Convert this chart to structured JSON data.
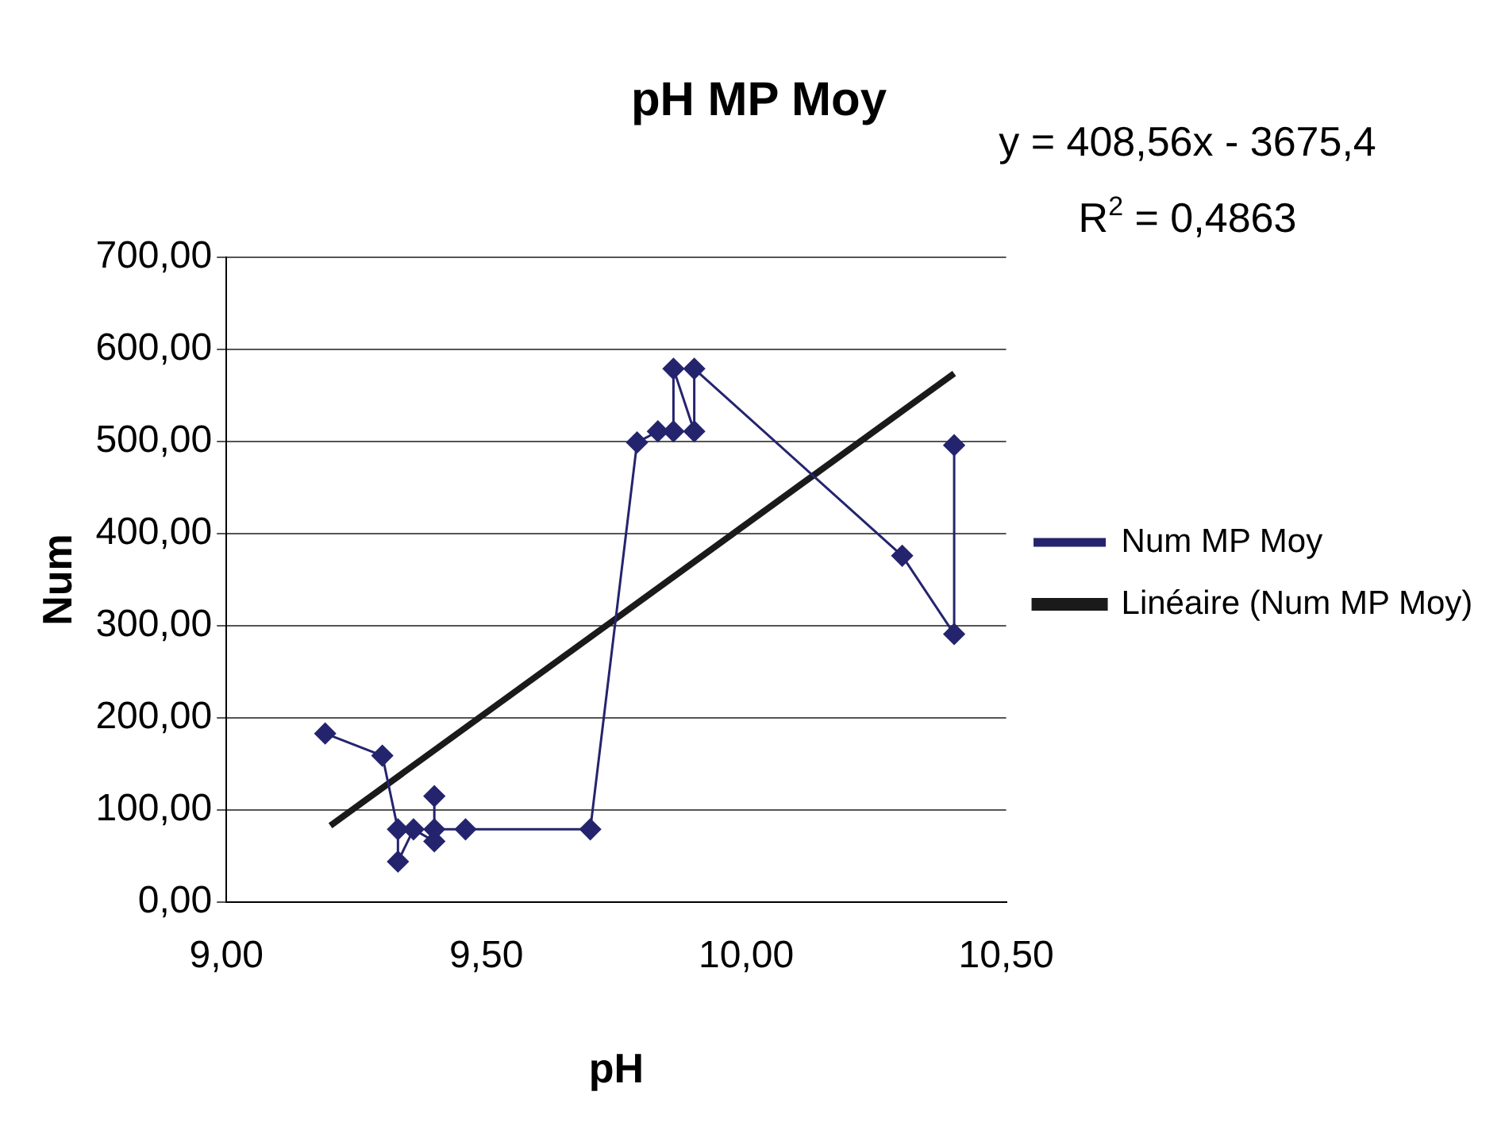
{
  "chart_data": {
    "type": "line",
    "title": "pH MP Moy",
    "xlabel": "pH",
    "ylabel": "Num",
    "xlim": [
      9,
      10.5
    ],
    "xticks": [
      {
        "value": 9,
        "label": "9,00"
      },
      {
        "value": 9.5,
        "label": "9,50"
      },
      {
        "value": 10,
        "label": "10,00"
      },
      {
        "value": 10.5,
        "label": "10,50"
      }
    ],
    "ylim": [
      0,
      700
    ],
    "yticks": [
      {
        "value": 0,
        "label": "0,00"
      },
      {
        "value": 100,
        "label": "100,00"
      },
      {
        "value": 200,
        "label": "200,00"
      },
      {
        "value": 300,
        "label": "300,00"
      },
      {
        "value": 400,
        "label": "400,00"
      },
      {
        "value": 500,
        "label": "500,00"
      },
      {
        "value": 600,
        "label": "600,00"
      },
      {
        "value": 700,
        "label": "700,00"
      }
    ],
    "grid": "y",
    "legend": "right",
    "annotations": [
      "y = 408,56x - 3675,4",
      "R$^{2}$ = 0,4863"
    ],
    "series": [
      {
        "name": "Num MP Moy",
        "color": "#24246e",
        "marker": "diamond",
        "x": [
          9.19,
          9.3,
          9.33,
          9.33,
          9.36,
          9.4,
          9.4,
          9.4,
          9.46,
          9.7,
          9.79,
          9.83,
          9.86,
          9.86,
          9.9,
          9.9,
          10.3,
          10.4,
          10.4
        ],
        "values": [
          183,
          159,
          79,
          44,
          79,
          66,
          115,
          79,
          79,
          79,
          499,
          511,
          511,
          579,
          511,
          579,
          376,
          291,
          496
        ]
      },
      {
        "name": "Linéaire (Num MP Moy)",
        "color": "#1a1a1a",
        "marker": "none",
        "x": [
          9.2,
          10.4
        ],
        "values": [
          83,
          574
        ]
      }
    ]
  }
}
